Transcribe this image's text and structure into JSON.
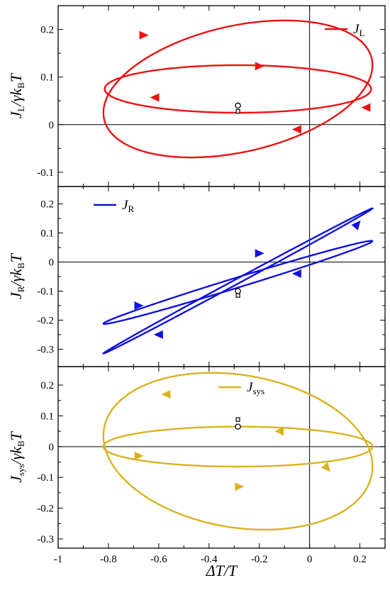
{
  "chart_data": [
    {
      "type": "line",
      "legend": "J_L",
      "legend_main": "J",
      "legend_sub": "L",
      "legend_position": "top-right",
      "color": "#ee1111",
      "ylabel_main": "J",
      "ylabel_sub": "L",
      "ylabel_rest": "/γk",
      "ylabel_sub2": "B",
      "ylabel_tail": "T",
      "xlim": [
        -1.0,
        0.3
      ],
      "ylim": [
        -0.13,
        0.25
      ],
      "yticks": [
        -0.1,
        0,
        0.1,
        0.2
      ],
      "ytick_labels": [
        "-0.1",
        "0",
        "0.1",
        "0.2"
      ],
      "series": [
        {
          "center": [
            -0.285,
            0.075
          ],
          "ax": [
            0.535,
            0.05
          ],
          "ay": [
            0.0,
            -0.135
          ]
        },
        {
          "center": [
            -0.285,
            0.075
          ],
          "ax": [
            0.53,
            0.0
          ],
          "ay": [
            0.0,
            0.05
          ]
        }
      ],
      "arrows": [
        {
          "x": -0.66,
          "y": 0.188,
          "dir": "right"
        },
        {
          "x": -0.2,
          "y": 0.123,
          "dir": "right"
        },
        {
          "x": -0.615,
          "y": 0.057,
          "dir": "left"
        },
        {
          "x": 0.225,
          "y": 0.036,
          "dir": "left"
        },
        {
          "x": -0.05,
          "y": -0.01,
          "dir": "left"
        }
      ],
      "markers": [
        {
          "x": -0.285,
          "y": 0.04,
          "shape": "circle"
        },
        {
          "x": -0.285,
          "y": 0.028,
          "shape": "square"
        }
      ]
    },
    {
      "type": "line",
      "legend": "J_R",
      "legend_main": "J",
      "legend_sub": "R",
      "legend_position": "top-left",
      "color": "#1111dd",
      "ylabel_main": "J",
      "ylabel_sub": "R",
      "ylabel_rest": "/γk",
      "ylabel_sub2": "B",
      "ylabel_tail": "T",
      "xlim": [
        -1.0,
        0.3
      ],
      "ylim": [
        -0.36,
        0.26
      ],
      "yticks": [
        -0.3,
        -0.2,
        -0.1,
        0,
        0.1,
        0.2
      ],
      "ytick_labels": [
        "-0.3",
        "-0.2",
        "-0.1",
        "0",
        "0.1",
        "0.2"
      ],
      "series": [
        {
          "center": [
            -0.285,
            -0.065
          ],
          "ax": [
            0.535,
            0.25
          ],
          "ay": [
            0.02,
            0.0
          ]
        },
        {
          "center": [
            -0.285,
            -0.07
          ],
          "ax": [
            0.535,
            0.142
          ],
          "ay": [
            0.0,
            0.018
          ]
        }
      ],
      "arrows": [
        {
          "x": 0.19,
          "y": 0.13,
          "dir": "upright"
        },
        {
          "x": -0.2,
          "y": 0.03,
          "dir": "right"
        },
        {
          "x": -0.05,
          "y": -0.04,
          "dir": "left"
        },
        {
          "x": -0.68,
          "y": -0.15,
          "dir": "right"
        },
        {
          "x": -0.6,
          "y": -0.25,
          "dir": "left"
        }
      ],
      "markers": [
        {
          "x": -0.285,
          "y": -0.1,
          "shape": "circle"
        },
        {
          "x": -0.285,
          "y": -0.115,
          "shape": "square"
        }
      ]
    },
    {
      "type": "line",
      "legend": "J_sys",
      "legend_main": "J",
      "legend_sub": "sys",
      "legend_position": "top-center",
      "color": "#d8b320",
      "ylabel_main": "J",
      "ylabel_sub": "sys",
      "ylabel_rest": "/γk",
      "ylabel_sub2": "B",
      "ylabel_tail": "T",
      "xlim": [
        -1.0,
        0.3
      ],
      "ylim": [
        -0.33,
        0.26
      ],
      "yticks": [
        -0.3,
        -0.2,
        -0.1,
        0,
        0.1,
        0.2
      ],
      "ytick_labels": [
        "-0.3",
        "-0.2",
        "-0.1",
        "0",
        "0.1",
        "0.2"
      ],
      "xticks": [
        -1,
        -0.8,
        -0.6,
        -0.4,
        -0.2,
        0,
        0.2
      ],
      "xtick_labels": [
        "-1",
        "-0.8",
        "-0.6",
        "-0.4",
        "-0.2",
        "0",
        "0.2"
      ],
      "xlabel_main": "ΔT/T",
      "series": [
        {
          "center": [
            -0.285,
            -0.015
          ],
          "ax": [
            0.535,
            -0.05
          ],
          "ay": [
            0.0,
            0.25
          ]
        },
        {
          "center": [
            -0.285,
            0.0
          ],
          "ax": [
            0.535,
            0.0
          ],
          "ay": [
            0.0,
            -0.065
          ]
        }
      ],
      "arrows": [
        {
          "x": -0.57,
          "y": 0.17,
          "dir": "left"
        },
        {
          "x": -0.68,
          "y": -0.03,
          "dir": "right"
        },
        {
          "x": -0.12,
          "y": 0.05,
          "dir": "left"
        },
        {
          "x": 0.07,
          "y": -0.07,
          "dir": "downright"
        },
        {
          "x": -0.28,
          "y": -0.13,
          "dir": "right"
        }
      ],
      "markers": [
        {
          "x": -0.285,
          "y": 0.065,
          "shape": "circle"
        },
        {
          "x": -0.285,
          "y": 0.088,
          "shape": "square"
        }
      ]
    }
  ]
}
